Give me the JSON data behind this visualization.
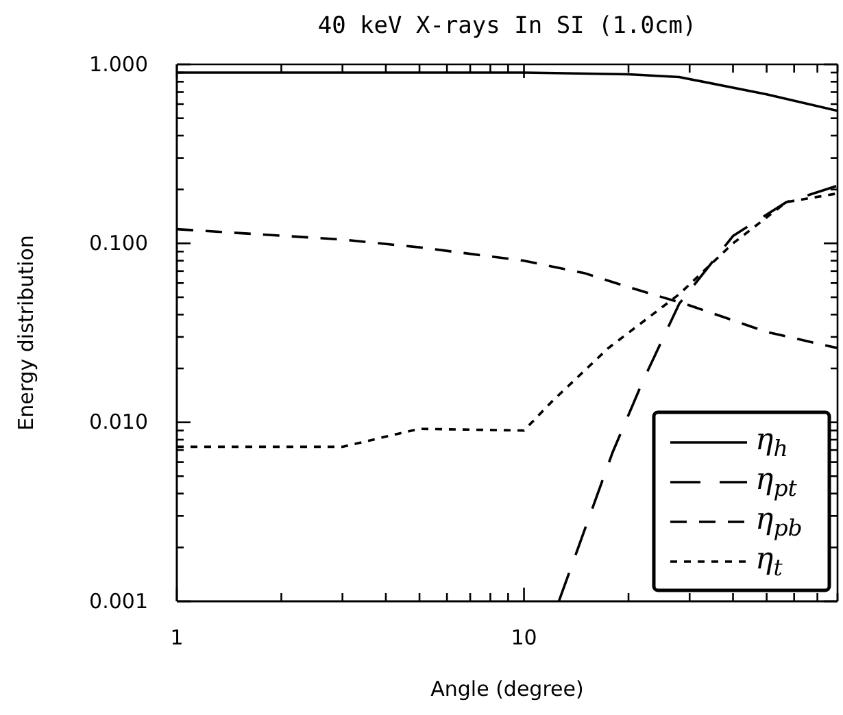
{
  "chart_data": {
    "type": "line",
    "title": "40 keV X-rays In SI (1.0cm)",
    "xlabel": "Angle (degree)",
    "ylabel": "Energy distribution",
    "log": "xy",
    "grid": false,
    "legend": "bottom right",
    "marker": "none",
    "xlim": [
      1,
      80
    ],
    "ylim": [
      0.001,
      1
    ],
    "xticks": [
      1,
      {
        "value": 2,
        "label": null
      },
      {
        "value": 3,
        "label": null
      },
      {
        "value": 4,
        "label": null
      },
      {
        "value": 5,
        "label": null
      },
      {
        "value": 6,
        "label": null
      },
      {
        "value": 7,
        "label": null
      },
      {
        "value": 8,
        "label": null
      },
      {
        "value": 9,
        "label": null
      },
      10,
      {
        "value": 20,
        "label": null
      },
      {
        "value": 30,
        "label": null
      },
      {
        "value": 40,
        "label": null
      },
      {
        "value": 50,
        "label": null
      },
      {
        "value": 60,
        "label": null
      },
      {
        "value": 70,
        "label": null
      },
      {
        "value": 80,
        "label": null
      }
    ],
    "yticks": [
      {
        "value": 0.001,
        "label": "0.001"
      },
      {
        "value": 0.002,
        "label": null
      },
      {
        "value": 0.003,
        "label": null
      },
      {
        "value": 0.004,
        "label": null
      },
      {
        "value": 0.005,
        "label": null
      },
      {
        "value": 0.006,
        "label": null
      },
      {
        "value": 0.007,
        "label": null
      },
      {
        "value": 0.008,
        "label": null
      },
      {
        "value": 0.009,
        "label": null
      },
      {
        "value": 0.01,
        "label": "0.010"
      },
      {
        "value": 0.02,
        "label": null
      },
      {
        "value": 0.03,
        "label": null
      },
      {
        "value": 0.04,
        "label": null
      },
      {
        "value": 0.05,
        "label": null
      },
      {
        "value": 0.06,
        "label": null
      },
      {
        "value": 0.07,
        "label": null
      },
      {
        "value": 0.08,
        "label": null
      },
      {
        "value": 0.09,
        "label": null
      },
      {
        "value": 0.1,
        "label": "0.100"
      },
      {
        "value": 0.2,
        "label": null
      },
      {
        "value": 0.3,
        "label": null
      },
      {
        "value": 0.4,
        "label": null
      },
      {
        "value": 0.5,
        "label": null
      },
      {
        "value": 0.6,
        "label": null
      },
      {
        "value": 0.7,
        "label": null
      },
      {
        "value": 0.8,
        "label": null
      },
      {
        "value": 0.9,
        "label": null
      },
      {
        "value": 1,
        "label": "1.000"
      }
    ],
    "series": [
      {
        "name": "η$_{h}$",
        "color": "#000000",
        "line_style": "solid",
        "x": [
          1,
          10,
          20,
          28,
          50,
          80
        ],
        "values": [
          0.9,
          0.9,
          0.88,
          0.85,
          0.68,
          0.55
        ]
      },
      {
        "name": "η$_{pt}$",
        "color": "#000000",
        "line_style": "longdashed",
        "x": [
          12.6,
          18,
          22,
          28,
          40,
          57,
          80
        ],
        "values": [
          0.001,
          0.0068,
          0.017,
          0.046,
          0.11,
          0.17,
          0.21
        ]
      },
      {
        "name": "η$_{pb}$",
        "color": "#000000",
        "line_style": "dashed",
        "x": [
          1,
          3,
          5,
          10,
          15,
          20,
          30,
          50,
          80
        ],
        "values": [
          0.12,
          0.105,
          0.095,
          0.08,
          0.068,
          0.057,
          0.045,
          0.032,
          0.026
        ]
      },
      {
        "name": "η$_{t}$",
        "color": "#000000",
        "line_style": "dotted",
        "x": [
          1,
          3,
          5,
          10,
          12,
          17.5,
          28,
          40,
          57,
          80
        ],
        "values": [
          0.0073,
          0.0073,
          0.0092,
          0.009,
          0.013,
          0.026,
          0.052,
          0.1,
          0.17,
          0.19
        ]
      }
    ]
  }
}
